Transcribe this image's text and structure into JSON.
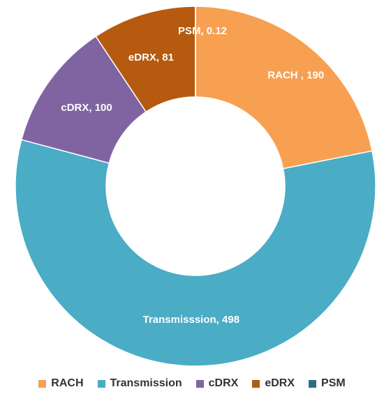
{
  "chart_data": {
    "type": "pie",
    "variant": "donut",
    "categories": [
      "RACH",
      "Transmission",
      "cDRX",
      "eDRX",
      "PSM"
    ],
    "values": [
      190,
      498,
      100,
      81,
      0.12
    ],
    "slice_labels": [
      "RACH , 190",
      "Transmisssion, 498",
      "cDRX, 100",
      "eDRX, 81",
      "PSM, 0.12"
    ],
    "colors": [
      "#F7A052",
      "#4BACC6",
      "#8064A2",
      "#B55A0F",
      "#2E6E82"
    ],
    "legend_placement": "bottom",
    "title": ""
  }
}
